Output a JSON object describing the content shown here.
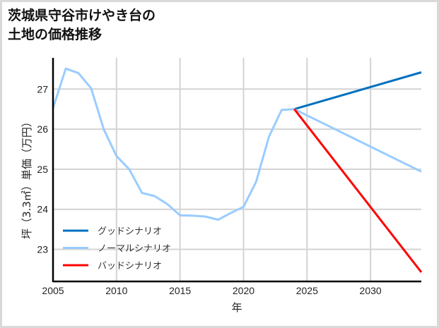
{
  "title": "茨城県守谷市けやき台の\n土地の価格推移",
  "chart_data": {
    "type": "line",
    "title": "茨城県守谷市けやき台の土地の価格推移",
    "xlabel": "年",
    "ylabel": "坪（3.3㎡）単価（万円）",
    "xlim": [
      2005,
      2034
    ],
    "ylim": [
      22.2,
      27.78
    ],
    "grid": true,
    "legend_position": "lower left",
    "x_ticks": [
      2005,
      2010,
      2015,
      2020,
      2025,
      2030
    ],
    "y_ticks": [
      23,
      24,
      25,
      26,
      27
    ],
    "series": [
      {
        "name": "グッドシナリオ",
        "color": "#0070c0",
        "x": [
          2024,
          2034
        ],
        "values": [
          26.5,
          27.42
        ]
      },
      {
        "name": "ノーマルシナリオ",
        "color": "#99ccff",
        "x": [
          2005,
          2006,
          2007,
          2008,
          2009,
          2010,
          2011,
          2012,
          2013,
          2014,
          2015,
          2016,
          2017,
          2018,
          2019,
          2020,
          2021,
          2022,
          2023,
          2024,
          2034
        ],
        "values": [
          26.52,
          27.51,
          27.4,
          27.02,
          25.99,
          25.33,
          25.0,
          24.41,
          24.33,
          24.13,
          23.85,
          23.84,
          23.82,
          23.74,
          23.91,
          24.06,
          24.69,
          25.81,
          26.48,
          26.5,
          24.94
        ]
      },
      {
        "name": "バッドシナリオ",
        "color": "#ff0000",
        "x": [
          2024,
          2034
        ],
        "values": [
          26.5,
          22.43
        ]
      }
    ]
  },
  "colors": {
    "grid": "#d3d3d3",
    "axis": "#000000",
    "frame": "#d9d9d9"
  }
}
